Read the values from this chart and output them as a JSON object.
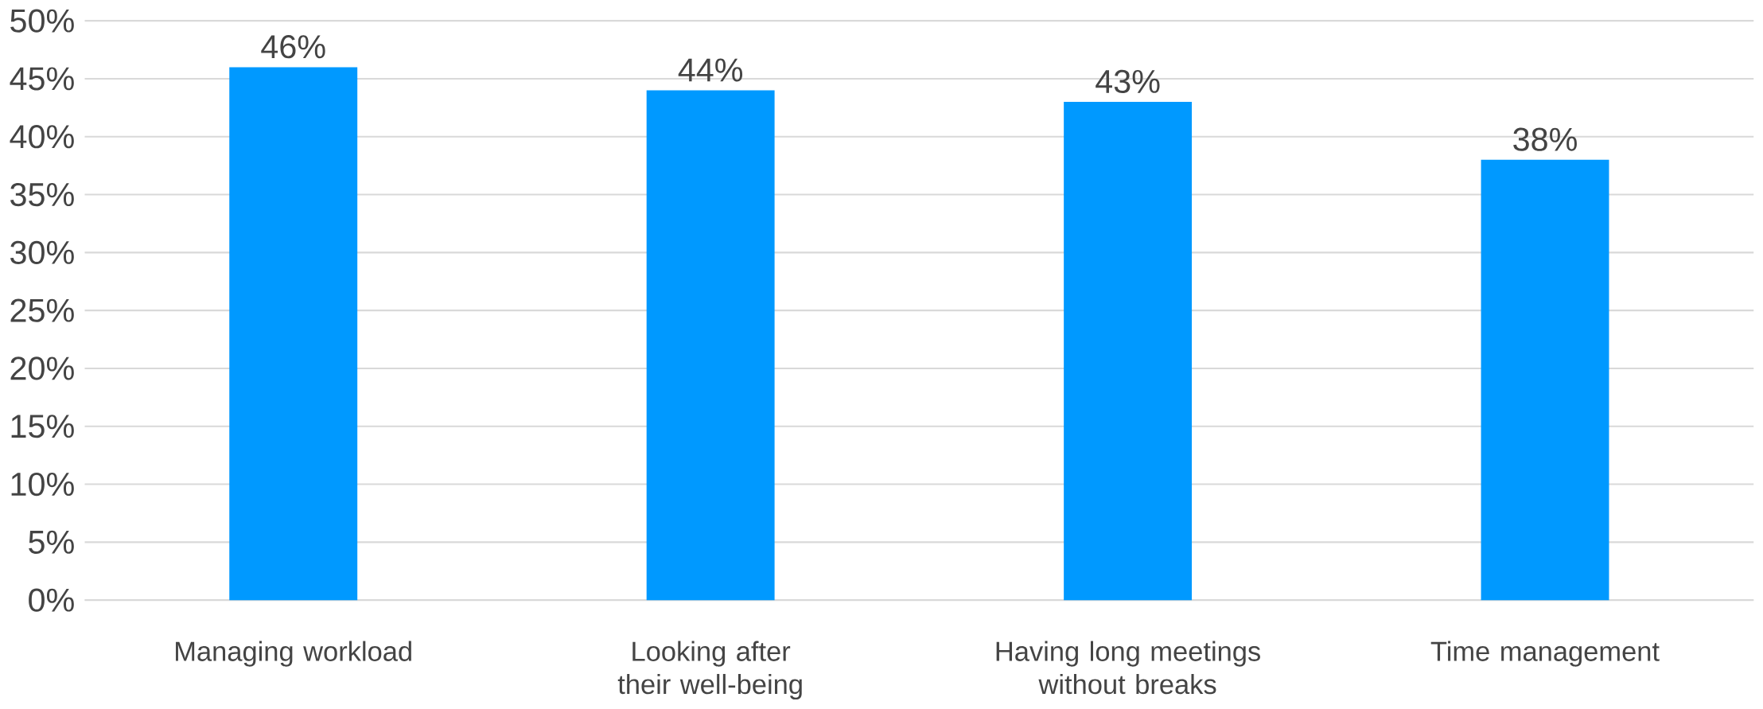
{
  "chart_data": {
    "type": "bar",
    "categories": [
      "Managing workload",
      "Looking after their well-being",
      "Having long meetings without breaks",
      "Time management"
    ],
    "values": [
      46,
      44,
      43,
      38
    ],
    "value_labels": [
      "46%",
      "44%",
      "43%",
      "38%"
    ],
    "color": "#0099ff",
    "ylim": [
      0,
      50
    ],
    "yticks": [
      {
        "value": 0,
        "label": "0%"
      },
      {
        "value": 5,
        "label": "5%"
      },
      {
        "value": 10,
        "label": "10%"
      },
      {
        "value": 15,
        "label": "15%"
      },
      {
        "value": 20,
        "label": "20%"
      },
      {
        "value": 25,
        "label": "25%"
      },
      {
        "value": 30,
        "label": "30%"
      },
      {
        "value": 35,
        "label": "35%"
      },
      {
        "value": 40,
        "label": "40%"
      },
      {
        "value": 45,
        "label": "45%"
      },
      {
        "value": 50,
        "label": "50%"
      }
    ],
    "grid": "y"
  }
}
